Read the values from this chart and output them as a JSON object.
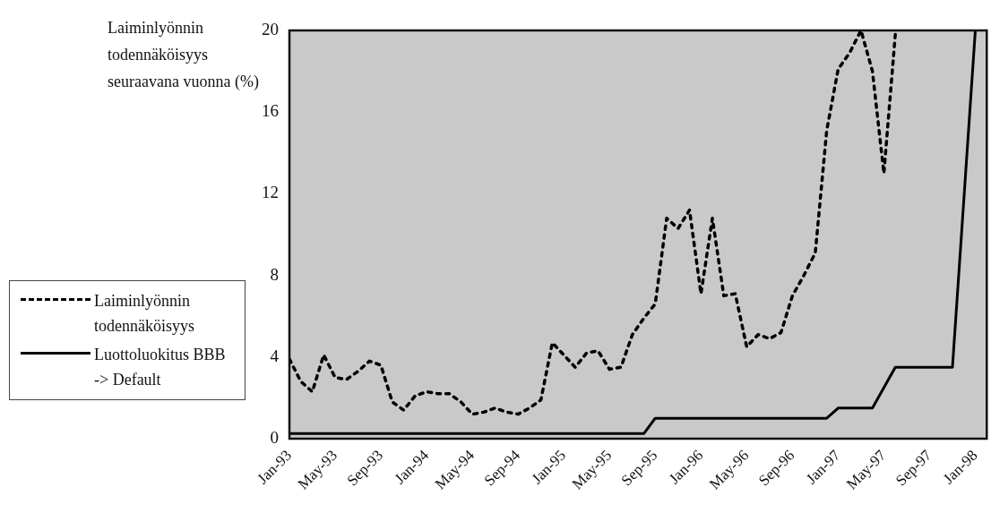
{
  "chart_data": {
    "type": "line",
    "ylabel": "Laiminlyönnin todennäköisyys seuraavana vuonna (%)",
    "xlim": [
      "1993-01",
      "1998-02"
    ],
    "xticks": [
      {
        "value": "1993-01",
        "label": "Jan-93"
      },
      {
        "value": "1993-05",
        "label": "May-93"
      },
      {
        "value": "1993-09",
        "label": "Sep-93"
      },
      {
        "value": "1994-01",
        "label": "Jan-94"
      },
      {
        "value": "1994-05",
        "label": "May-94"
      },
      {
        "value": "1994-09",
        "label": "Sep-94"
      },
      {
        "value": "1995-01",
        "label": "Jan-95"
      },
      {
        "value": "1995-05",
        "label": "May-95"
      },
      {
        "value": "1995-09",
        "label": "Sep-95"
      },
      {
        "value": "1996-01",
        "label": "Jan-96"
      },
      {
        "value": "1996-05",
        "label": "May-96"
      },
      {
        "value": "1996-09",
        "label": "Sep-96"
      },
      {
        "value": "1997-01",
        "label": "Jan-97"
      },
      {
        "value": "1997-05",
        "label": "May-97"
      },
      {
        "value": "1997-09",
        "label": "Sep-97"
      },
      {
        "value": "1998-01",
        "label": "Jan-98"
      }
    ],
    "ylim": [
      0,
      20
    ],
    "yticks": [
      0,
      4,
      8,
      12,
      16,
      20
    ],
    "grid": false,
    "legend": "left",
    "marker": "none",
    "series": [
      {
        "name": "Laiminlyönnin todennäköisyys",
        "color": "#000000",
        "line_style": "dotted",
        "x": [
          "1993-01",
          "1993-02",
          "1993-03",
          "1993-04",
          "1993-05",
          "1993-06",
          "1993-07",
          "1993-08",
          "1993-09",
          "1993-10",
          "1993-11",
          "1993-12",
          "1994-01",
          "1994-02",
          "1994-03",
          "1994-04",
          "1994-05",
          "1994-06",
          "1994-07",
          "1994-08",
          "1994-09",
          "1994-10",
          "1994-11",
          "1994-12",
          "1995-01",
          "1995-02",
          "1995-03",
          "1995-04",
          "1995-05",
          "1995-06",
          "1995-07",
          "1995-08",
          "1995-09",
          "1995-10",
          "1995-11",
          "1995-12",
          "1996-01",
          "1996-02",
          "1996-03",
          "1996-04",
          "1996-05",
          "1996-06",
          "1996-07",
          "1996-08",
          "1996-09",
          "1996-10",
          "1996-11",
          "1996-12",
          "1997-01",
          "1997-02",
          "1997-03",
          "1997-04",
          "1997-05",
          "1997-06"
        ],
        "values": [
          3.9,
          2.8,
          2.3,
          4.1,
          3.0,
          2.9,
          3.3,
          3.8,
          3.6,
          1.8,
          1.4,
          2.1,
          2.3,
          2.2,
          2.2,
          1.8,
          1.2,
          1.3,
          1.5,
          1.3,
          1.2,
          1.5,
          1.9,
          4.7,
          4.1,
          3.5,
          4.2,
          4.3,
          3.4,
          3.5,
          5.1,
          5.9,
          6.6,
          10.8,
          10.3,
          11.2,
          7.1,
          10.8,
          7.0,
          7.1,
          4.5,
          5.1,
          4.9,
          5.2,
          7.0,
          8.0,
          9.1,
          15.1,
          18.1,
          18.9,
          20.0,
          18.0,
          13.0,
          19.8
        ]
      },
      {
        "name": "Luottoluokitus BBB -> Default",
        "color": "#000000",
        "line_style": "solid",
        "x": [
          "1993-01",
          "1995-08",
          "1995-09",
          "1996-12",
          "1997-01",
          "1997-04",
          "1997-06",
          "1997-11",
          "1998-01"
        ],
        "values": [
          0.25,
          0.25,
          1.0,
          1.0,
          1.5,
          1.5,
          3.5,
          3.5,
          20
        ]
      }
    ]
  }
}
